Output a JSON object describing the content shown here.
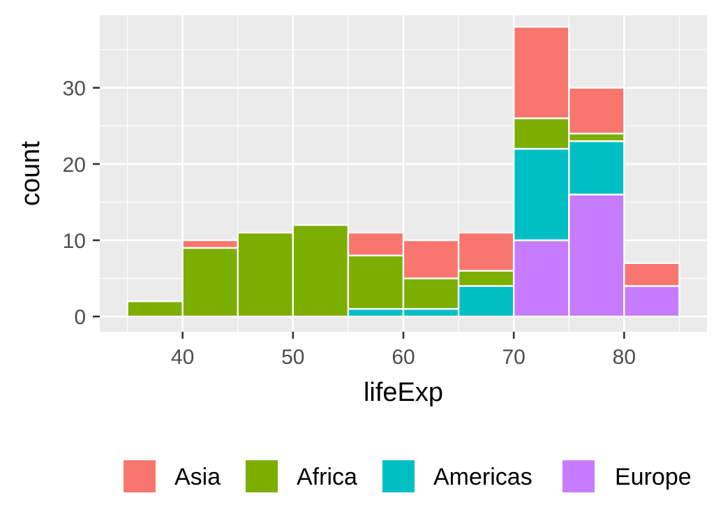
{
  "chart_data": {
    "type": "bar",
    "subtype": "stacked-histogram",
    "title": "",
    "xlabel": "lifeExp",
    "ylabel": "count",
    "xlim": [
      32.5,
      87.5
    ],
    "ylim": [
      -2,
      39.5
    ],
    "x_ticks": [
      "40",
      "50",
      "60",
      "70",
      "80"
    ],
    "y_ticks": [
      "0",
      "10",
      "20",
      "30"
    ],
    "bin_width": 5,
    "bins": [
      [
        35,
        40
      ],
      [
        40,
        45
      ],
      [
        45,
        50
      ],
      [
        50,
        55
      ],
      [
        55,
        60
      ],
      [
        60,
        65
      ],
      [
        65,
        70
      ],
      [
        70,
        75
      ],
      [
        75,
        80
      ],
      [
        80,
        85
      ]
    ],
    "stack_order": [
      "Europe",
      "Americas",
      "Africa",
      "Asia"
    ],
    "series": [
      {
        "name": "Asia",
        "color": "#F8766D",
        "values": [
          0,
          1,
          0,
          0,
          3,
          5,
          5,
          12,
          6,
          3
        ]
      },
      {
        "name": "Africa",
        "color": "#7CAE00",
        "values": [
          2,
          9,
          11,
          12,
          7,
          4,
          2,
          4,
          1,
          0
        ]
      },
      {
        "name": "Americas",
        "color": "#00BFC4",
        "values": [
          0,
          0,
          0,
          0,
          1,
          1,
          4,
          12,
          7,
          0
        ]
      },
      {
        "name": "Europe",
        "color": "#C77CFF",
        "values": [
          0,
          0,
          0,
          0,
          0,
          0,
          0,
          10,
          16,
          4
        ]
      }
    ],
    "grid": true,
    "legend": {
      "position": "bottom",
      "entries": [
        "Asia",
        "Africa",
        "Americas",
        "Europe"
      ]
    }
  }
}
